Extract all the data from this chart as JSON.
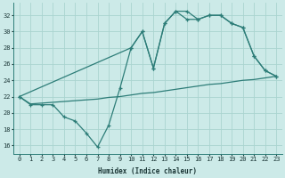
{
  "xlabel": "Humidex (Indice chaleur)",
  "bg_color": "#cceae8",
  "grid_color": "#aad4d0",
  "line_color": "#2d7d78",
  "xlim": [
    -0.5,
    23.5
  ],
  "ylim": [
    15,
    33.5
  ],
  "yticks": [
    16,
    18,
    20,
    22,
    24,
    26,
    28,
    30,
    32
  ],
  "xticks": [
    0,
    1,
    2,
    3,
    4,
    5,
    6,
    7,
    8,
    9,
    10,
    11,
    12,
    13,
    14,
    15,
    16,
    17,
    18,
    19,
    20,
    21,
    22,
    23
  ],
  "line1_x": [
    0,
    1,
    2,
    3,
    4,
    5,
    6,
    7,
    8,
    9,
    10,
    11,
    12,
    13,
    14,
    15,
    16,
    17,
    18,
    19,
    20,
    21,
    22,
    23
  ],
  "line1_y": [
    22,
    21,
    21,
    21,
    19.5,
    19,
    17.5,
    15.8,
    18.5,
    23,
    28,
    30,
    25.5,
    31,
    32.5,
    32.5,
    31.5,
    32,
    32,
    31,
    30.5,
    27,
    25.2,
    24.5
  ],
  "line2_x": [
    0,
    10,
    11,
    12,
    13,
    14,
    15,
    16,
    17,
    18,
    19,
    20,
    21,
    22,
    23
  ],
  "line2_y": [
    22,
    28,
    30,
    25.5,
    31,
    32.5,
    31.5,
    31.5,
    32,
    32,
    31,
    30.5,
    27,
    25.2,
    24.5
  ],
  "line3_x": [
    0,
    1,
    2,
    3,
    4,
    5,
    6,
    7,
    8,
    9,
    10,
    11,
    12,
    13,
    14,
    15,
    16,
    17,
    18,
    19,
    20,
    21,
    22,
    23
  ],
  "line3_y": [
    22,
    21.1,
    21.2,
    21.3,
    21.4,
    21.5,
    21.6,
    21.7,
    21.9,
    22.0,
    22.2,
    22.4,
    22.5,
    22.7,
    22.9,
    23.1,
    23.3,
    23.5,
    23.6,
    23.8,
    24.0,
    24.1,
    24.3,
    24.5
  ]
}
